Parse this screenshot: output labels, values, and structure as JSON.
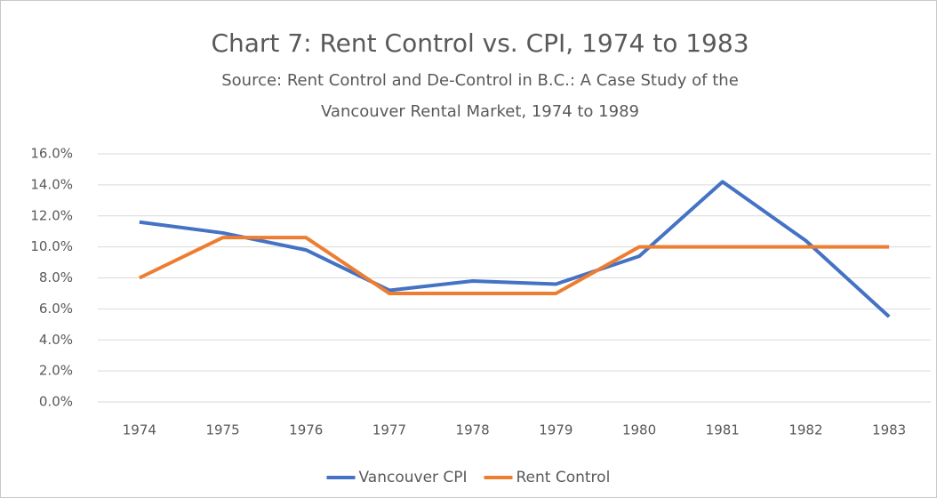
{
  "chart_data": {
    "type": "line",
    "title": "Chart 7: Rent Control vs. CPI, 1974 to 1983",
    "subtitle": [
      "Source:  Rent Control and De-Control in B.C.: A Case Study of the",
      "Vancouver Rental Market, 1974 to 1989"
    ],
    "categories": [
      "1974",
      "1975",
      "1976",
      "1977",
      "1978",
      "1979",
      "1980",
      "1981",
      "1982",
      "1983"
    ],
    "series": [
      {
        "name": "Vancouver CPI",
        "color": "#4472c4",
        "values": [
          11.6,
          10.9,
          9.8,
          7.2,
          7.8,
          7.6,
          9.4,
          14.2,
          10.4,
          5.5
        ]
      },
      {
        "name": "Rent Control",
        "color": "#ed7d31",
        "values": [
          8.0,
          10.6,
          10.6,
          7.0,
          7.0,
          7.0,
          10.0,
          10.0,
          10.0,
          10.0
        ]
      }
    ],
    "ylim": [
      0,
      16
    ],
    "yticks": [
      {
        "value": 0,
        "label": "0.0%"
      },
      {
        "value": 2,
        "label": "2.0%"
      },
      {
        "value": 4,
        "label": "4.0%"
      },
      {
        "value": 6,
        "label": "6.0%"
      },
      {
        "value": 8,
        "label": "8.0%"
      },
      {
        "value": 10,
        "label": "10.0%"
      },
      {
        "value": 12,
        "label": "12.0%"
      },
      {
        "value": 14,
        "label": "14.0%"
      },
      {
        "value": 16,
        "label": "16.0%"
      }
    ],
    "grid": true,
    "legend": "bottom"
  }
}
